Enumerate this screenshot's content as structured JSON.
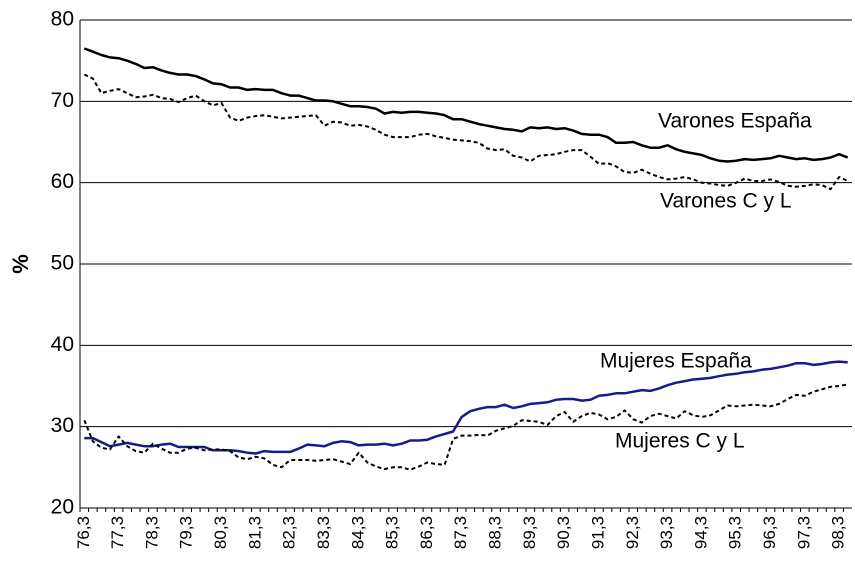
{
  "chart_data": {
    "type": "line",
    "y_label": "%",
    "categories": [
      "76,3",
      null,
      null,
      null,
      "77,3",
      null,
      null,
      null,
      "78,3",
      null,
      null,
      null,
      "79,3",
      null,
      null,
      null,
      "80,3",
      null,
      null,
      null,
      "81,3",
      null,
      null,
      null,
      "82,3",
      null,
      null,
      null,
      "83,3",
      null,
      null,
      null,
      "84,3",
      null,
      null,
      null,
      "85,3",
      null,
      null,
      null,
      "86,3",
      null,
      null,
      null,
      "87,3",
      null,
      null,
      null,
      "88,3",
      null,
      null,
      null,
      "89,3",
      null,
      null,
      null,
      "90,3",
      null,
      null,
      null,
      "91,3",
      null,
      null,
      null,
      "92,3",
      null,
      null,
      null,
      "93,3",
      null,
      null,
      null,
      "94,3",
      null,
      null,
      null,
      "95,3",
      null,
      null,
      null,
      "96,3",
      null,
      null,
      null,
      "97,3",
      null,
      null,
      null,
      "98,3",
      null
    ],
    "ylim": [
      20,
      80
    ],
    "yticks": [
      20,
      30,
      40,
      50,
      60,
      70,
      80
    ],
    "grid": true,
    "series": [
      {
        "name": "Varones España",
        "color": "#000000",
        "linestyle": "solid",
        "values": [
          76.5,
          76.1,
          75.7,
          75.4,
          75.3,
          75.0,
          74.6,
          74.1,
          74.2,
          73.8,
          73.5,
          73.3,
          73.3,
          73.1,
          72.7,
          72.2,
          72.1,
          71.7,
          71.7,
          71.4,
          71.5,
          71.4,
          71.4,
          71.0,
          70.7,
          70.7,
          70.4,
          70.1,
          70.1,
          70.0,
          69.7,
          69.4,
          69.4,
          69.3,
          69.1,
          68.5,
          68.7,
          68.6,
          68.7,
          68.7,
          68.6,
          68.5,
          68.3,
          67.8,
          67.8,
          67.5,
          67.2,
          67.0,
          66.8,
          66.6,
          66.5,
          66.3,
          66.8,
          66.7,
          66.8,
          66.6,
          66.7,
          66.4,
          66.0,
          65.9,
          65.9,
          65.6,
          64.9,
          64.9,
          65.0,
          64.6,
          64.3,
          64.3,
          64.6,
          64.1,
          63.8,
          63.6,
          63.4,
          63.0,
          62.7,
          62.6,
          62.7,
          62.9,
          62.8,
          62.9,
          63.0,
          63.3,
          63.1,
          62.9,
          63.0,
          62.8,
          62.9,
          63.1,
          63.5,
          63.1
        ]
      },
      {
        "name": "Varones C y L",
        "color": "#000000",
        "linestyle": "dotted",
        "values": [
          73.3,
          72.8,
          71.0,
          71.3,
          71.5,
          71.0,
          70.5,
          70.6,
          70.8,
          70.4,
          70.3,
          69.9,
          70.4,
          70.7,
          70.0,
          69.5,
          69.8,
          68.0,
          67.6,
          68.0,
          68.2,
          68.3,
          68.1,
          67.9,
          68.0,
          68.1,
          68.2,
          68.3,
          67.0,
          67.5,
          67.4,
          67.0,
          67.1,
          66.9,
          66.5,
          65.9,
          65.6,
          65.6,
          65.6,
          65.9,
          66.0,
          65.7,
          65.5,
          65.3,
          65.2,
          65.1,
          64.9,
          64.2,
          64.0,
          64.1,
          63.3,
          63.1,
          62.6,
          63.3,
          63.4,
          63.5,
          63.8,
          64.0,
          64.0,
          63.2,
          62.3,
          62.4,
          62.0,
          61.3,
          61.2,
          61.6,
          61.1,
          60.7,
          60.4,
          60.5,
          60.7,
          60.4,
          60.0,
          59.9,
          59.7,
          59.6,
          60.0,
          60.5,
          60.2,
          60.2,
          60.4,
          60.1,
          59.6,
          59.5,
          59.6,
          59.8,
          59.7,
          59.2,
          60.7,
          60.2
        ]
      },
      {
        "name": "Mujeres España",
        "color": "#1a1a8c",
        "linestyle": "solid",
        "values": [
          28.6,
          28.6,
          28.1,
          27.6,
          27.8,
          28.0,
          27.8,
          27.6,
          27.6,
          27.8,
          27.9,
          27.5,
          27.5,
          27.5,
          27.5,
          27.1,
          27.1,
          27.1,
          27.0,
          26.8,
          26.7,
          27.0,
          26.9,
          26.9,
          26.9,
          27.3,
          27.8,
          27.7,
          27.6,
          28.0,
          28.2,
          28.1,
          27.7,
          27.8,
          27.8,
          27.9,
          27.7,
          27.9,
          28.3,
          28.3,
          28.4,
          28.8,
          29.1,
          29.4,
          31.2,
          31.9,
          32.2,
          32.4,
          32.4,
          32.7,
          32.3,
          32.5,
          32.8,
          32.9,
          33.0,
          33.3,
          33.4,
          33.4,
          33.2,
          33.3,
          33.8,
          33.9,
          34.1,
          34.1,
          34.3,
          34.5,
          34.4,
          34.7,
          35.1,
          35.4,
          35.6,
          35.8,
          35.9,
          36.0,
          36.2,
          36.4,
          36.5,
          36.7,
          36.8,
          37.0,
          37.1,
          37.3,
          37.5,
          37.8,
          37.8,
          37.6,
          37.7,
          37.9,
          38.0,
          37.9
        ]
      },
      {
        "name": "Mujeres C y L",
        "color": "#000000",
        "linestyle": "dotted",
        "values": [
          30.8,
          28.2,
          27.4,
          27.2,
          28.8,
          27.6,
          27.0,
          26.8,
          27.9,
          27.3,
          26.8,
          26.8,
          27.3,
          27.4,
          27.1,
          27.2,
          27.2,
          27.0,
          26.2,
          26.0,
          26.3,
          26.1,
          25.3,
          25.0,
          25.9,
          25.9,
          25.9,
          25.8,
          25.9,
          26.0,
          25.7,
          25.4,
          26.8,
          25.6,
          25.1,
          24.8,
          25.0,
          25.0,
          24.7,
          25.1,
          25.6,
          25.4,
          25.3,
          28.5,
          28.9,
          28.9,
          29.0,
          28.9,
          29.5,
          29.8,
          30.1,
          30.8,
          30.7,
          30.6,
          30.2,
          31.3,
          31.8,
          30.6,
          31.3,
          31.7,
          31.5,
          30.9,
          31.2,
          32.0,
          30.9,
          30.5,
          31.3,
          31.6,
          31.3,
          31.0,
          31.9,
          31.4,
          31.2,
          31.4,
          32.0,
          32.6,
          32.5,
          32.6,
          32.7,
          32.6,
          32.5,
          32.8,
          33.4,
          33.9,
          33.8,
          34.3,
          34.6,
          34.9,
          35.0,
          35.2
        ]
      }
    ]
  }
}
